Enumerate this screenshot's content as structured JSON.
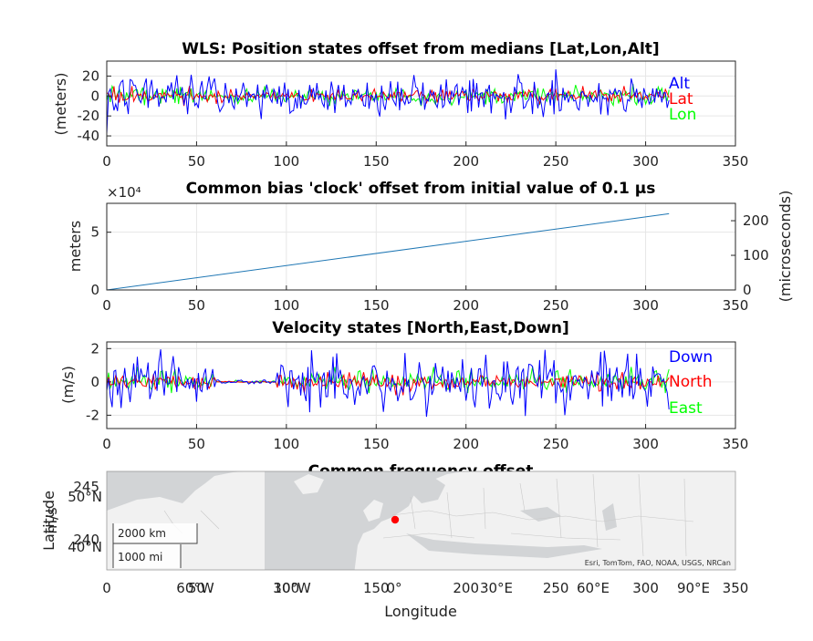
{
  "chart_data": [
    {
      "type": "line",
      "title": "WLS: Position states offset from medians [Lat,Lon,Alt]",
      "ylabel": "(meters)",
      "xlim": [
        0,
        350
      ],
      "ylim": [
        -50,
        35
      ],
      "xticks": [
        0,
        50,
        100,
        150,
        200,
        250,
        300,
        350
      ],
      "yticks": [
        -40,
        -20,
        0,
        20
      ],
      "grid": true,
      "legend_placement": "right",
      "series": [
        {
          "name": "Alt",
          "color": "#0000ff",
          "n": 314,
          "amplitude": 9,
          "min": -38,
          "max": 33
        },
        {
          "name": "Lat",
          "color": "#ff0000",
          "n": 314,
          "amplitude": 3,
          "min": -10,
          "max": 10
        },
        {
          "name": "Lon",
          "color": "#00ff00",
          "n": 314,
          "amplitude": 4,
          "min": -10,
          "max": 12
        }
      ]
    },
    {
      "type": "line",
      "title": "Common bias 'clock' offset from initial value of 0.1 μs",
      "ylabel": "meters",
      "ylabel_right": "(microseconds)",
      "exponent_label": "×10⁴",
      "xlim": [
        0,
        350
      ],
      "ylim": [
        0,
        7.5
      ],
      "y_unit_multiplier": 10000,
      "xticks": [
        0,
        50,
        100,
        150,
        200,
        250,
        300,
        350
      ],
      "yticks": [
        0,
        5
      ],
      "yticks_right": [
        0,
        100,
        200
      ],
      "grid": true,
      "series": [
        {
          "name": "",
          "color": "#1f77b4",
          "x": [
            0,
            313
          ],
          "values": [
            0,
            6.6
          ]
        }
      ]
    },
    {
      "type": "line",
      "title": "Velocity states [North,East,Down]",
      "ylabel": "(m/s)",
      "xlim": [
        0,
        350
      ],
      "ylim": [
        -2.8,
        2.4
      ],
      "xticks": [
        0,
        50,
        100,
        150,
        200,
        250,
        300,
        350
      ],
      "yticks": [
        -2,
        0,
        2
      ],
      "grid": true,
      "legend_placement": "right",
      "series": [
        {
          "name": "Down",
          "color": "#0000ff",
          "n": 314,
          "amplitude": 0.8,
          "min": -2.7,
          "max": 2.3
        },
        {
          "name": "North",
          "color": "#ff0000",
          "n": 314,
          "amplitude": 0.25,
          "min": -0.8,
          "max": 0.8
        },
        {
          "name": "East",
          "color": "#00ff00",
          "n": 314,
          "amplitude": 0.3,
          "min": -0.9,
          "max": 0.9
        }
      ]
    },
    {
      "type": "map",
      "title": "Common frequency offset",
      "ylabel": "m/s",
      "xlim": [
        0,
        350
      ],
      "xticks": [
        0,
        50,
        100,
        150,
        200,
        250,
        300,
        350
      ],
      "yticks": [
        240,
        245
      ],
      "overlay": {
        "xlabel": "Longitude",
        "ylabel": "Latitude",
        "lon_ticks": [
          "60°W",
          "30°W",
          "0°",
          "30°E",
          "60°E",
          "90°E"
        ],
        "lat_ticks": [
          "50°N",
          "40°N"
        ],
        "scale_bar": [
          "2000 km",
          "1000 mi"
        ],
        "attribution": "Esri, TomTom, FAO, NOAA, USGS, NRCan",
        "marker": {
          "lat": 44.2,
          "lon": 7.5,
          "color": "#ff0000"
        }
      }
    }
  ]
}
